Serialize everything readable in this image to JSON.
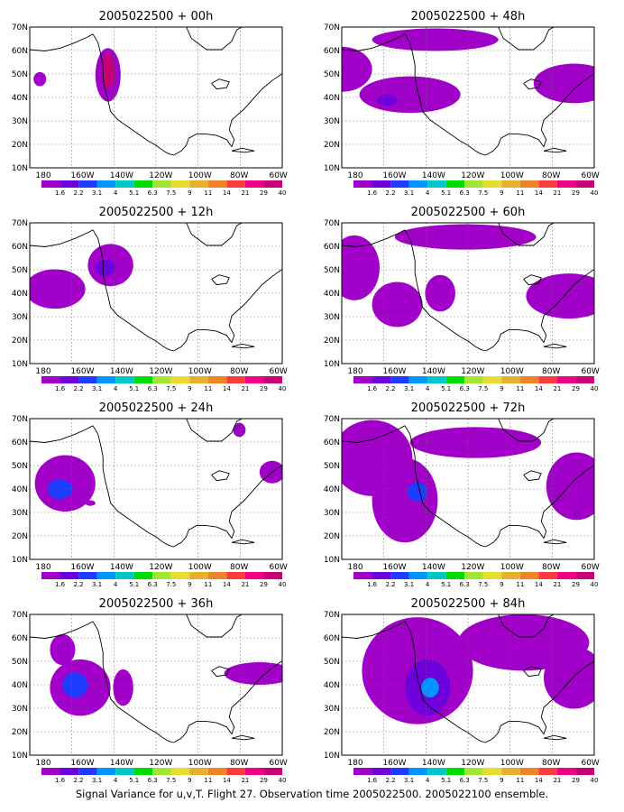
{
  "footer": "Signal Variance for u,v,T. Flight 27. Observation time 2005022500. 2005022100 ensemble.",
  "axes": {
    "lat_labels": [
      "70N",
      "60N",
      "50N",
      "40N",
      "30N",
      "20N",
      "10N"
    ],
    "lon_labels": [
      "180",
      "160W",
      "140W",
      "120W",
      "100W",
      "80W",
      "60W"
    ]
  },
  "colorbar": {
    "labels": [
      "1.6",
      "2.2",
      "3.1",
      "4",
      "5.1",
      "6.3",
      "7.5",
      "9",
      "11",
      "14",
      "21",
      "29",
      "40"
    ],
    "colors": [
      "#a000c8",
      "#6e00dc",
      "#1e3cff",
      "#0096ff",
      "#00c8c8",
      "#00dc00",
      "#a0e632",
      "#e6dc32",
      "#e6af2d",
      "#f08228",
      "#fa3c3c",
      "#f00082",
      "#c80078"
    ]
  },
  "panels": [
    {
      "title": "2005022500 + 00h"
    },
    {
      "title": "2005022500 + 48h"
    },
    {
      "title": "2005022500 + 12h"
    },
    {
      "title": "2005022500 + 60h"
    },
    {
      "title": "2005022500 + 24h"
    },
    {
      "title": "2005022500 + 72h"
    },
    {
      "title": "2005022500 + 36h"
    },
    {
      "title": "2005022500 + 84h"
    }
  ]
}
